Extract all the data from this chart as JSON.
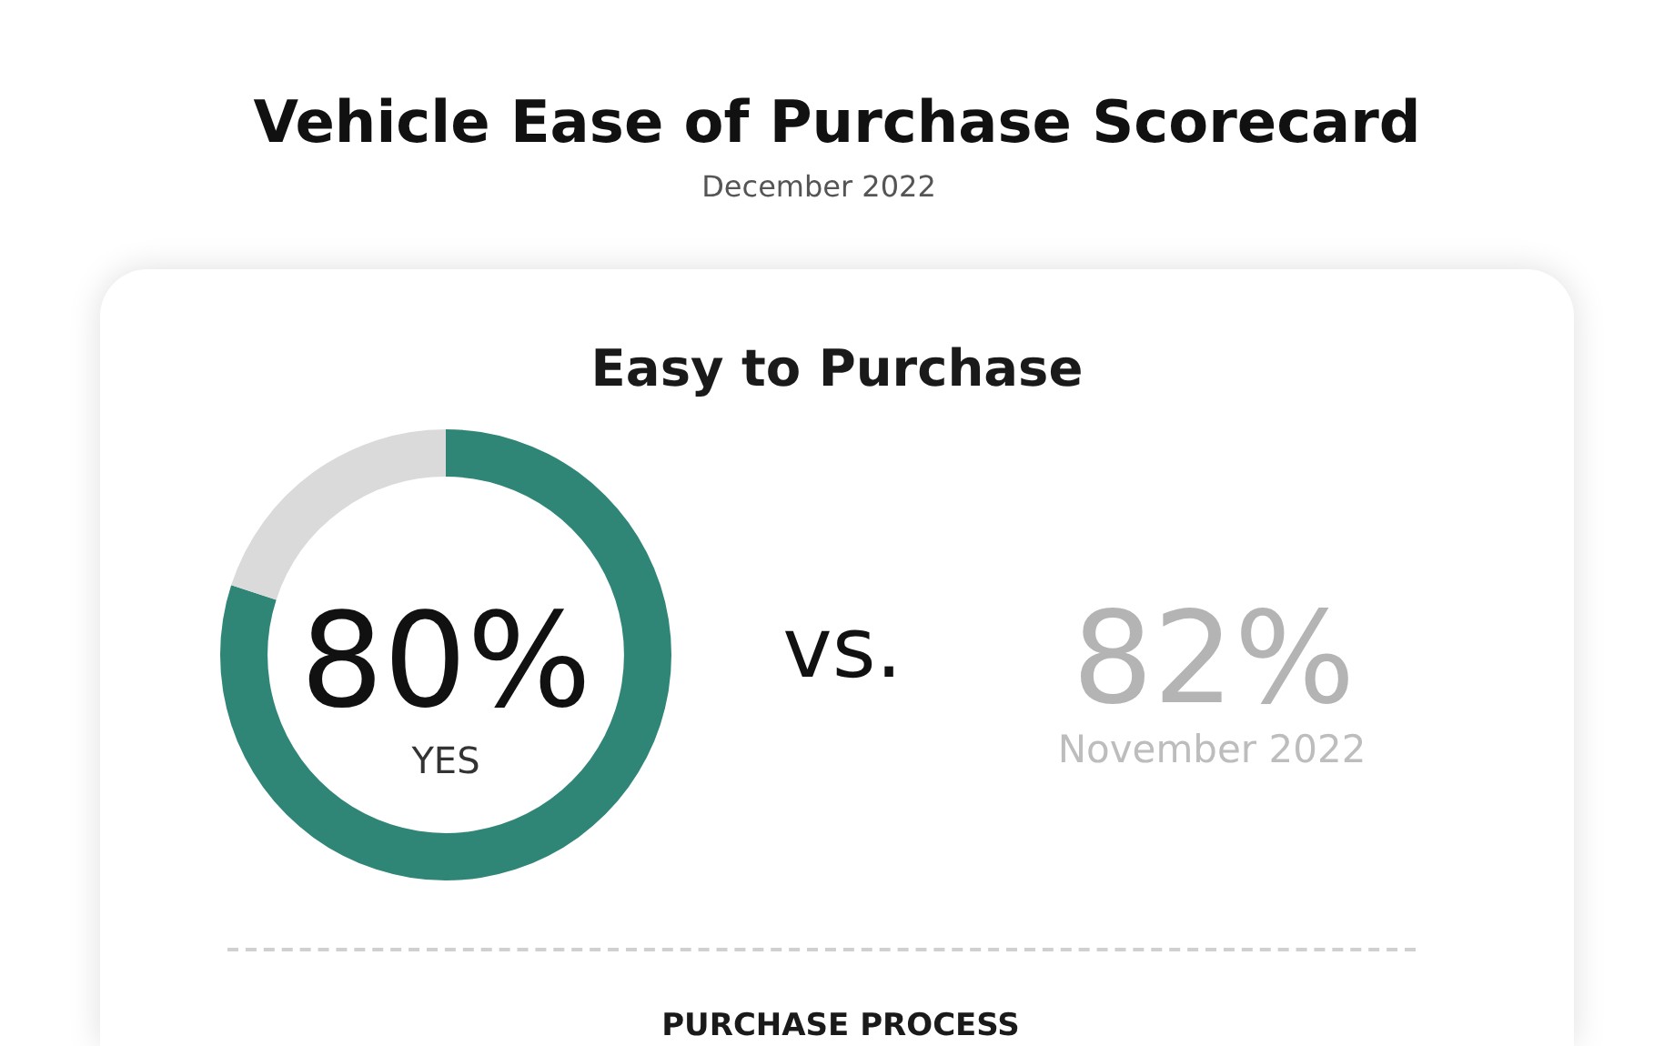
{
  "chart_data": {
    "type": "donut",
    "title": "Vehicle Ease of Purchase Scorecard",
    "subtitle": "December 2022",
    "categories": [
      "YES",
      null
    ],
    "values": [
      80,
      20
    ],
    "colors": [
      "#2f8677",
      "#dadada"
    ],
    "value_labels": [
      "80%",
      null
    ],
    "annotations": [
      "Easy to Purchase",
      "vs.",
      "82%",
      "November 2022",
      "PURCHASE PROCESS"
    ]
  }
}
